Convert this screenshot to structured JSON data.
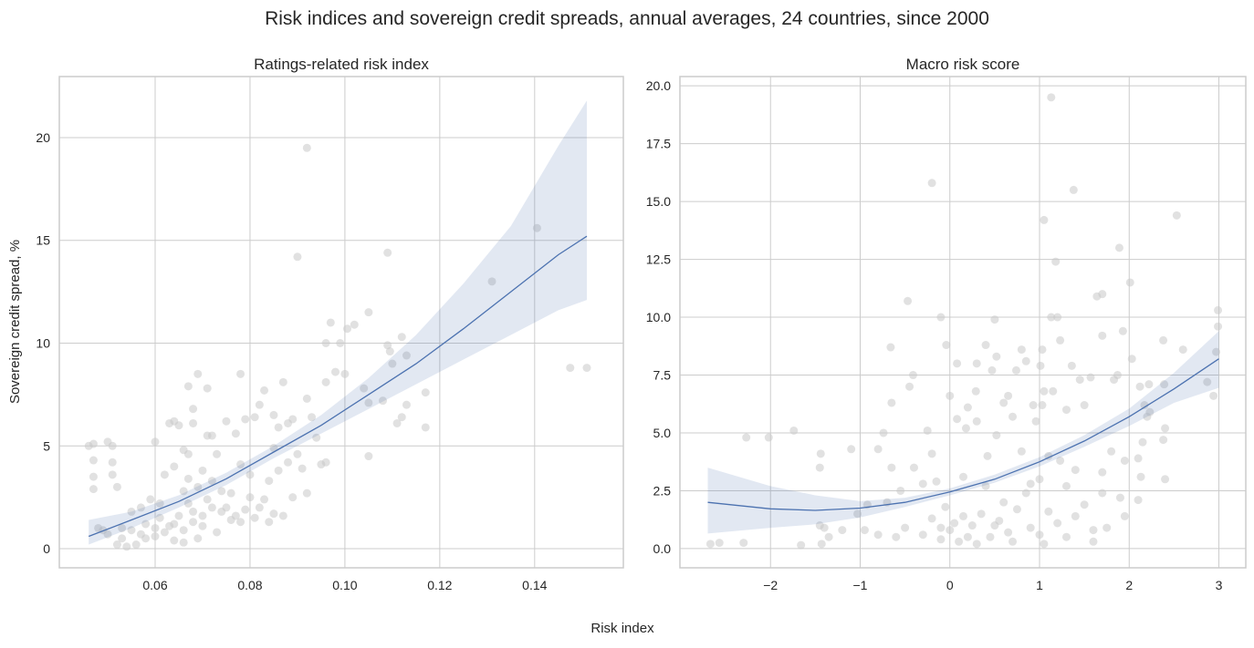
{
  "title": "Risk indices and sovereign credit spreads, annual averages, 24 countries, since 2000",
  "shared_xlabel": "Risk index",
  "shared_ylabel": "Sovereign credit spread, %",
  "colors": {
    "points": "#c8c8c8",
    "line": "#4c72b0",
    "band": "#4c72b0",
    "grid": "#cccccc"
  },
  "chart_data": [
    {
      "type": "scatter",
      "title": "Ratings-related risk index",
      "xlabel": "Risk index",
      "ylabel": "Sovereign credit spread, %",
      "xlim": [
        0.0398,
        0.1587
      ],
      "ylim": [
        -0.93,
        22.97
      ],
      "grid": true,
      "xticks": [
        {
          "v": 0.06,
          "label": "0.06"
        },
        {
          "v": 0.08,
          "label": "0.08"
        },
        {
          "v": 0.1,
          "label": "0.10"
        },
        {
          "v": 0.12,
          "label": "0.12"
        },
        {
          "v": 0.14,
          "label": "0.14"
        }
      ],
      "yticks": [
        {
          "v": 0,
          "label": "0"
        },
        {
          "v": 5,
          "label": "5"
        },
        {
          "v": 10,
          "label": "10"
        },
        {
          "v": 15,
          "label": "15"
        },
        {
          "v": 20,
          "label": "20"
        }
      ],
      "points": [
        [
          0.092,
          19.5
        ],
        [
          0.09,
          14.2
        ],
        [
          0.109,
          14.4
        ],
        [
          0.1405,
          15.6
        ],
        [
          0.131,
          13.0
        ],
        [
          0.105,
          11.5
        ],
        [
          0.097,
          11.0
        ],
        [
          0.1005,
          10.7
        ],
        [
          0.102,
          10.9
        ],
        [
          0.112,
          10.3
        ],
        [
          0.109,
          9.9
        ],
        [
          0.096,
          10.0
        ],
        [
          0.099,
          10.0
        ],
        [
          0.1095,
          9.6
        ],
        [
          0.113,
          9.4
        ],
        [
          0.11,
          9.0
        ],
        [
          0.1475,
          8.8
        ],
        [
          0.151,
          8.8
        ],
        [
          0.098,
          8.6
        ],
        [
          0.1,
          8.5
        ],
        [
          0.117,
          7.6
        ],
        [
          0.108,
          7.2
        ],
        [
          0.113,
          7.0
        ],
        [
          0.112,
          6.4
        ],
        [
          0.111,
          6.1
        ],
        [
          0.117,
          5.9
        ],
        [
          0.105,
          4.5
        ],
        [
          0.104,
          7.8
        ],
        [
          0.105,
          7.1
        ],
        [
          0.069,
          8.5
        ],
        [
          0.078,
          8.5
        ],
        [
          0.067,
          7.9
        ],
        [
          0.071,
          7.8
        ],
        [
          0.087,
          8.1
        ],
        [
          0.083,
          7.7
        ],
        [
          0.092,
          7.3
        ],
        [
          0.096,
          8.1
        ],
        [
          0.093,
          6.4
        ],
        [
          0.094,
          5.4
        ],
        [
          0.095,
          4.1
        ],
        [
          0.096,
          4.2
        ],
        [
          0.092,
          2.7
        ],
        [
          0.089,
          2.5
        ],
        [
          0.087,
          1.6
        ],
        [
          0.046,
          5.0
        ],
        [
          0.047,
          5.1
        ],
        [
          0.05,
          5.2
        ],
        [
          0.051,
          5.0
        ],
        [
          0.047,
          4.3
        ],
        [
          0.047,
          3.5
        ],
        [
          0.047,
          2.9
        ],
        [
          0.051,
          4.2
        ],
        [
          0.051,
          3.6
        ],
        [
          0.052,
          3.0
        ],
        [
          0.06,
          5.2
        ],
        [
          0.064,
          6.2
        ],
        [
          0.065,
          6.0
        ],
        [
          0.063,
          6.1
        ],
        [
          0.068,
          6.8
        ],
        [
          0.068,
          6.1
        ],
        [
          0.071,
          5.5
        ],
        [
          0.072,
          5.5
        ],
        [
          0.077,
          5.6
        ],
        [
          0.075,
          6.2
        ],
        [
          0.079,
          6.3
        ],
        [
          0.081,
          6.4
        ],
        [
          0.082,
          7.0
        ],
        [
          0.085,
          6.5
        ],
        [
          0.086,
          5.9
        ],
        [
          0.088,
          6.1
        ],
        [
          0.089,
          6.3
        ],
        [
          0.09,
          4.6
        ],
        [
          0.085,
          4.9
        ],
        [
          0.078,
          4.1
        ],
        [
          0.08,
          3.6
        ],
        [
          0.084,
          3.3
        ],
        [
          0.086,
          3.8
        ],
        [
          0.088,
          4.2
        ],
        [
          0.091,
          3.9
        ],
        [
          0.062,
          3.6
        ],
        [
          0.064,
          4.0
        ],
        [
          0.066,
          4.8
        ],
        [
          0.067,
          4.6
        ],
        [
          0.07,
          3.8
        ],
        [
          0.072,
          3.3
        ],
        [
          0.074,
          2.8
        ],
        [
          0.076,
          2.7
        ],
        [
          0.08,
          2.5
        ],
        [
          0.082,
          2.0
        ],
        [
          0.085,
          1.7
        ],
        [
          0.084,
          1.3
        ],
        [
          0.078,
          1.3
        ],
        [
          0.073,
          0.8
        ],
        [
          0.069,
          0.5
        ],
        [
          0.066,
          0.3
        ],
        [
          0.064,
          0.4
        ],
        [
          0.06,
          0.6
        ],
        [
          0.058,
          0.5
        ],
        [
          0.056,
          0.2
        ],
        [
          0.054,
          0.1
        ],
        [
          0.052,
          0.2
        ],
        [
          0.049,
          0.9
        ],
        [
          0.048,
          1.0
        ],
        [
          0.05,
          0.7
        ],
        [
          0.053,
          1.0
        ],
        [
          0.055,
          1.8
        ],
        [
          0.057,
          2.0
        ],
        [
          0.059,
          2.4
        ],
        [
          0.061,
          1.5
        ],
        [
          0.063,
          1.1
        ],
        [
          0.065,
          1.6
        ],
        [
          0.067,
          2.2
        ],
        [
          0.068,
          1.8
        ],
        [
          0.07,
          1.6
        ],
        [
          0.072,
          2.0
        ],
        [
          0.074,
          1.8
        ],
        [
          0.076,
          1.4
        ],
        [
          0.06,
          1.0
        ],
        [
          0.062,
          0.8
        ],
        [
          0.064,
          1.2
        ],
        [
          0.066,
          0.9
        ],
        [
          0.068,
          1.3
        ],
        [
          0.07,
          1.1
        ],
        [
          0.057,
          0.7
        ],
        [
          0.055,
          0.9
        ],
        [
          0.053,
          0.5
        ],
        [
          0.058,
          1.2
        ],
        [
          0.061,
          2.2
        ],
        [
          0.066,
          2.8
        ],
        [
          0.069,
          3.0
        ],
        [
          0.071,
          2.4
        ],
        [
          0.073,
          4.6
        ],
        [
          0.067,
          3.4
        ],
        [
          0.075,
          2.0
        ],
        [
          0.077,
          1.6
        ],
        [
          0.079,
          1.9
        ],
        [
          0.081,
          1.5
        ],
        [
          0.083,
          2.4
        ]
      ],
      "fit": {
        "x": [
          0.046,
          0.055,
          0.065,
          0.075,
          0.085,
          0.095,
          0.105,
          0.115,
          0.125,
          0.135,
          0.145,
          0.151
        ],
        "y": [
          0.6,
          1.4,
          2.3,
          3.4,
          4.7,
          6.0,
          7.5,
          9.0,
          10.7,
          12.5,
          14.3,
          15.2
        ],
        "ci_lower": [
          0.2,
          1.0,
          2.0,
          3.1,
          4.4,
          5.6,
          6.8,
          8.0,
          9.2,
          10.4,
          11.6,
          12.1
        ],
        "ci_upper": [
          1.4,
          1.8,
          2.6,
          3.7,
          5.0,
          6.5,
          8.3,
          10.4,
          12.9,
          15.7,
          19.6,
          21.8
        ]
      }
    },
    {
      "type": "scatter",
      "title": "Macro risk score",
      "xlabel": "Risk index",
      "ylabel": "Sovereign credit spread, %",
      "xlim": [
        -3.01,
        3.3
      ],
      "ylim": [
        -0.83,
        20.4
      ],
      "grid": true,
      "xticks": [
        {
          "v": -2,
          "label": "−2"
        },
        {
          "v": -1,
          "label": "−1"
        },
        {
          "v": 0,
          "label": "0"
        },
        {
          "v": 1,
          "label": "1"
        },
        {
          "v": 2,
          "label": "2"
        },
        {
          "v": 3,
          "label": "3"
        }
      ],
      "yticks": [
        {
          "v": 0,
          "label": "0.0"
        },
        {
          "v": 2.5,
          "label": "2.5"
        },
        {
          "v": 5,
          "label": "5.0"
        },
        {
          "v": 7.5,
          "label": "7.5"
        },
        {
          "v": 10,
          "label": "10.0"
        },
        {
          "v": 12.5,
          "label": "12.5"
        },
        {
          "v": 15,
          "label": "15.0"
        },
        {
          "v": 17.5,
          "label": "17.5"
        },
        {
          "v": 20,
          "label": "20.0"
        }
      ],
      "points": [
        [
          1.13,
          19.5
        ],
        [
          -0.2,
          15.8
        ],
        [
          1.38,
          15.5
        ],
        [
          2.53,
          14.4
        ],
        [
          1.05,
          14.2
        ],
        [
          1.89,
          13.0
        ],
        [
          1.18,
          12.4
        ],
        [
          2.01,
          11.5
        ],
        [
          1.7,
          11.0
        ],
        [
          1.64,
          10.9
        ],
        [
          -0.47,
          10.7
        ],
        [
          -0.1,
          10.0
        ],
        [
          1.13,
          10.0
        ],
        [
          1.2,
          10.0
        ],
        [
          0.5,
          9.9
        ],
        [
          2.99,
          10.3
        ],
        [
          2.99,
          9.6
        ],
        [
          1.93,
          9.4
        ],
        [
          1.7,
          9.2
        ],
        [
          1.23,
          9.0
        ],
        [
          2.38,
          9.0
        ],
        [
          -0.66,
          8.7
        ],
        [
          -0.04,
          8.8
        ],
        [
          0.4,
          8.8
        ],
        [
          0.8,
          8.6
        ],
        [
          1.03,
          8.6
        ],
        [
          2.6,
          8.6
        ],
        [
          2.97,
          8.5
        ],
        [
          0.52,
          8.3
        ],
        [
          0.85,
          8.1
        ],
        [
          0.3,
          8.0
        ],
        [
          0.08,
          8.0
        ],
        [
          2.03,
          8.2
        ],
        [
          1.01,
          7.9
        ],
        [
          1.36,
          7.9
        ],
        [
          0.74,
          7.7
        ],
        [
          0.47,
          7.7
        ],
        [
          -0.41,
          7.5
        ],
        [
          -0.45,
          7.0
        ],
        [
          1.87,
          7.5
        ],
        [
          1.83,
          7.3
        ],
        [
          1.45,
          7.3
        ],
        [
          1.57,
          7.4
        ],
        [
          2.87,
          7.2
        ],
        [
          2.39,
          7.1
        ],
        [
          2.22,
          7.1
        ],
        [
          2.12,
          7.0
        ],
        [
          0.29,
          6.8
        ],
        [
          0.65,
          6.6
        ],
        [
          1.05,
          6.8
        ],
        [
          1.15,
          6.8
        ],
        [
          0.2,
          6.1
        ],
        [
          -0.65,
          6.3
        ],
        [
          0.0,
          6.6
        ],
        [
          0.6,
          6.3
        ],
        [
          0.93,
          6.2
        ],
        [
          1.03,
          6.2
        ],
        [
          1.3,
          6.0
        ],
        [
          1.5,
          6.2
        ],
        [
          2.94,
          6.6
        ],
        [
          2.17,
          6.2
        ],
        [
          2.23,
          5.9
        ],
        [
          2.2,
          5.7
        ],
        [
          0.08,
          5.6
        ],
        [
          0.3,
          5.5
        ],
        [
          0.7,
          5.7
        ],
        [
          0.96,
          5.5
        ],
        [
          0.52,
          4.9
        ],
        [
          0.18,
          5.2
        ],
        [
          -0.25,
          5.1
        ],
        [
          -2.27,
          4.8
        ],
        [
          -2.02,
          4.8
        ],
        [
          -1.74,
          5.1
        ],
        [
          -0.74,
          5.0
        ],
        [
          -0.8,
          4.3
        ],
        [
          -1.1,
          4.3
        ],
        [
          -1.44,
          4.1
        ],
        [
          -1.45,
          3.5
        ],
        [
          -0.65,
          3.5
        ],
        [
          -0.4,
          3.5
        ],
        [
          -0.2,
          4.1
        ],
        [
          0.42,
          4.0
        ],
        [
          0.8,
          4.2
        ],
        [
          1.1,
          4.0
        ],
        [
          1.23,
          3.8
        ],
        [
          1.8,
          4.2
        ],
        [
          2.38,
          4.7
        ],
        [
          2.4,
          5.2
        ],
        [
          2.15,
          4.6
        ],
        [
          2.1,
          3.9
        ],
        [
          1.95,
          3.8
        ],
        [
          2.4,
          3.0
        ],
        [
          2.13,
          3.1
        ],
        [
          1.4,
          3.4
        ],
        [
          1.7,
          3.3
        ],
        [
          0.15,
          3.1
        ],
        [
          -0.55,
          2.5
        ],
        [
          -0.3,
          2.8
        ],
        [
          -0.92,
          1.9
        ],
        [
          -0.7,
          2.0
        ],
        [
          -1.03,
          1.5
        ],
        [
          -1.45,
          1.0
        ],
        [
          -1.4,
          0.9
        ],
        [
          -2.67,
          0.2
        ],
        [
          -2.57,
          0.25
        ],
        [
          -2.3,
          0.25
        ],
        [
          -1.66,
          0.15
        ],
        [
          -1.43,
          0.2
        ],
        [
          -1.35,
          0.5
        ],
        [
          -1.2,
          0.8
        ],
        [
          -0.95,
          0.8
        ],
        [
          -0.8,
          0.6
        ],
        [
          -0.6,
          0.5
        ],
        [
          -0.5,
          0.9
        ],
        [
          -0.3,
          0.6
        ],
        [
          -0.1,
          0.4
        ],
        [
          0.0,
          0.8
        ],
        [
          0.1,
          0.3
        ],
        [
          0.2,
          0.5
        ],
        [
          0.3,
          0.2
        ],
        [
          0.45,
          0.5
        ],
        [
          0.55,
          1.2
        ],
        [
          0.7,
          0.3
        ],
        [
          0.9,
          0.9
        ],
        [
          1.0,
          0.6
        ],
        [
          1.05,
          0.2
        ],
        [
          1.2,
          1.1
        ],
        [
          1.3,
          0.5
        ],
        [
          1.6,
          0.8
        ],
        [
          1.6,
          0.3
        ],
        [
          1.75,
          0.9
        ],
        [
          1.95,
          1.4
        ],
        [
          2.1,
          2.1
        ],
        [
          1.9,
          2.2
        ],
        [
          1.7,
          2.4
        ],
        [
          1.5,
          1.9
        ],
        [
          1.3,
          2.7
        ],
        [
          0.9,
          2.8
        ],
        [
          0.6,
          2.0
        ],
        [
          0.35,
          1.5
        ],
        [
          0.15,
          1.4
        ],
        [
          -0.05,
          1.8
        ],
        [
          -0.2,
          1.3
        ],
        [
          0.4,
          2.7
        ],
        [
          0.75,
          1.7
        ],
        [
          1.1,
          1.6
        ],
        [
          1.4,
          1.4
        ],
        [
          0.25,
          1.0
        ],
        [
          0.5,
          1.0
        ],
        [
          0.05,
          1.1
        ],
        [
          -0.1,
          0.9
        ],
        [
          0.65,
          0.7
        ],
        [
          0.85,
          2.4
        ],
        [
          1.0,
          3.0
        ],
        [
          -0.15,
          2.9
        ]
      ],
      "fit": {
        "x": [
          -2.7,
          -2,
          -1.5,
          -1,
          -0.5,
          0,
          0.5,
          1,
          1.5,
          2,
          2.5,
          3
        ],
        "y": [
          2.0,
          1.72,
          1.65,
          1.75,
          2.0,
          2.45,
          3.0,
          3.75,
          4.65,
          5.7,
          6.9,
          8.2
        ],
        "ci_lower": [
          0.65,
          0.9,
          1.05,
          1.35,
          1.8,
          2.3,
          2.85,
          3.55,
          4.4,
          5.3,
          6.3,
          6.95
        ],
        "ci_upper": [
          3.5,
          2.7,
          2.3,
          2.05,
          2.2,
          2.6,
          3.2,
          3.95,
          4.9,
          6.05,
          7.6,
          9.4
        ]
      }
    }
  ]
}
